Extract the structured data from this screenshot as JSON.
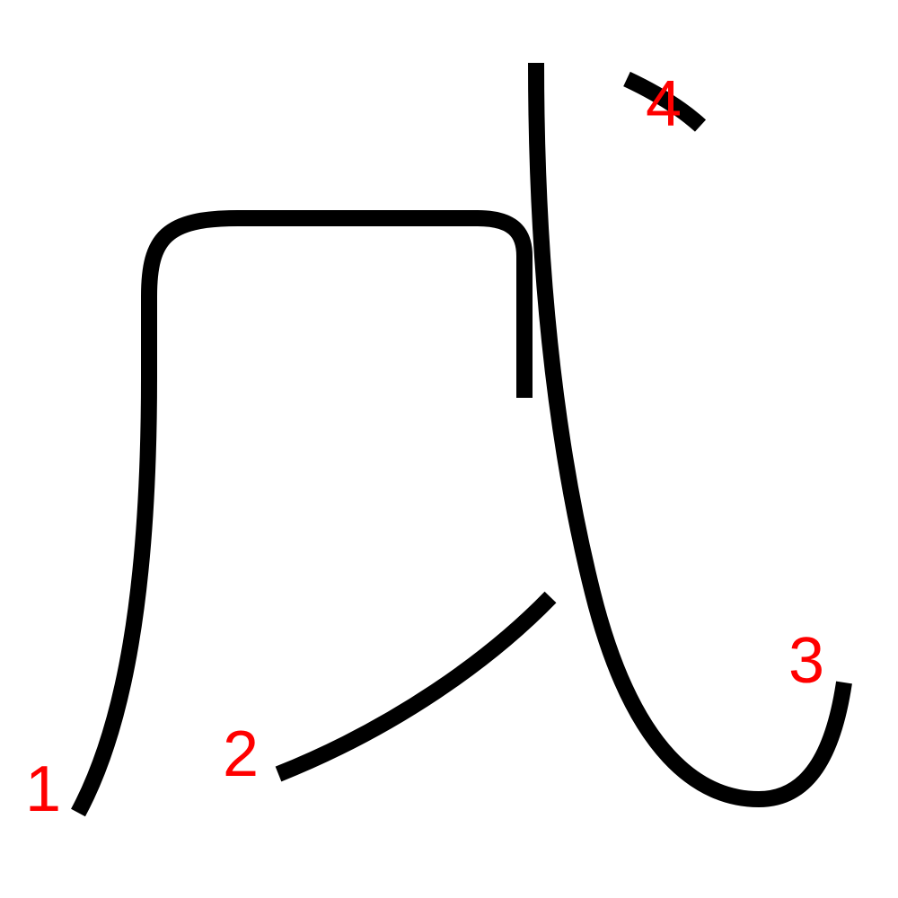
{
  "character": {
    "stroke_color": "#000000",
    "label_color": "#ff0000",
    "strokes": [
      {
        "number": "1"
      },
      {
        "number": "2"
      },
      {
        "number": "3"
      },
      {
        "number": "4"
      }
    ]
  }
}
